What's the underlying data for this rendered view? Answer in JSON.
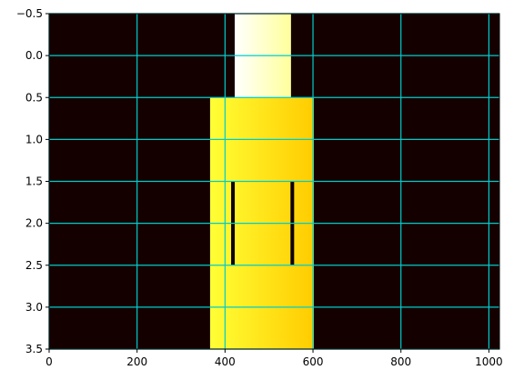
{
  "chart_data": {
    "type": "heatmap",
    "title": "",
    "xlabel": "",
    "ylabel": "",
    "xlim": [
      0,
      1024
    ],
    "ylim": [
      3.5,
      -0.5
    ],
    "y_inverted": true,
    "grid": true,
    "grid_color": "#00cccc",
    "colormap": "hot",
    "background_value": 0.03,
    "x_ticks": [
      0,
      200,
      400,
      600,
      800,
      1000
    ],
    "x_tick_labels": [
      "0",
      "200",
      "400",
      "600",
      "800",
      "1000"
    ],
    "y_ticks": [
      -0.5,
      0.0,
      0.5,
      1.0,
      1.5,
      2.0,
      2.5,
      3.0,
      3.5
    ],
    "y_tick_labels": [
      "−0.5",
      "0.0",
      "0.5",
      "1.0",
      "1.5",
      "2.0",
      "2.5",
      "3.0",
      "3.5"
    ],
    "rows": [
      {
        "row": 0,
        "x_start": 422,
        "x_end": 550,
        "value_start": 1.0,
        "value_end": 0.9
      },
      {
        "row": 1,
        "x_start": 366,
        "x_end": 602,
        "value_start": 0.8,
        "value_end": 0.67
      },
      {
        "row": 2,
        "x_start": 366,
        "x_end": 602,
        "value_start": 0.8,
        "value_end": 0.67
      },
      {
        "row": 3,
        "x_start": 366,
        "x_end": 602,
        "value_start": 0.8,
        "value_end": 0.67
      }
    ],
    "dark_marks": [
      {
        "x": 418,
        "y_start": 1.5,
        "y_end": 2.5
      },
      {
        "x": 553,
        "y_start": 1.5,
        "y_end": 2.5
      }
    ]
  }
}
